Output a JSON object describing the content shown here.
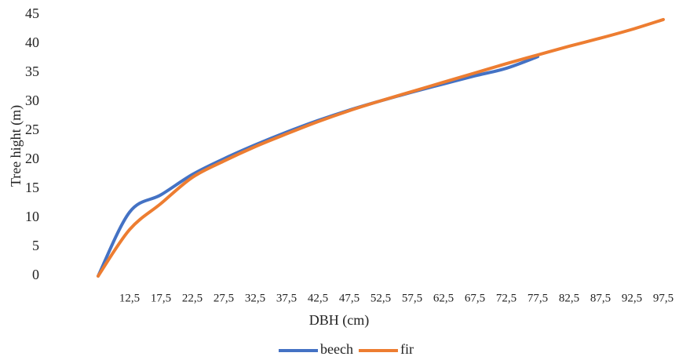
{
  "chart_data": {
    "type": "line",
    "x_label": "DBH (cm)",
    "y_label": "Tree hight (m)",
    "categories": [
      null,
      "12,5",
      "17,5",
      "22,5",
      "27,5",
      "32,5",
      "37,5",
      "42,5",
      "47,5",
      "52,5",
      "57,5",
      "62,5",
      "67,5",
      "72,5",
      "77,5",
      "82,5",
      "87,5",
      "92,5",
      "97,5"
    ],
    "series": [
      {
        "name": "beech",
        "color": "#4472c4",
        "values": [
          0,
          11,
          14,
          17.5,
          20.2,
          22.6,
          24.8,
          26.8,
          28.6,
          30.2,
          31.7,
          33.1,
          34.5,
          35.8,
          37.8,
          null,
          null,
          null,
          null
        ]
      },
      {
        "name": "fir",
        "color": "#ed7d31",
        "values": [
          0,
          8,
          12.5,
          17,
          19.8,
          22.3,
          24.5,
          26.6,
          28.5,
          30.2,
          31.8,
          33.4,
          35,
          36.6,
          38.1,
          39.6,
          41,
          42.5,
          44.2
        ]
      }
    ],
    "ylim": [
      0,
      45
    ],
    "yticks": [
      0,
      5,
      10,
      15,
      20,
      25,
      30,
      35,
      40,
      45
    ],
    "grid": false,
    "legend": "bottom"
  }
}
